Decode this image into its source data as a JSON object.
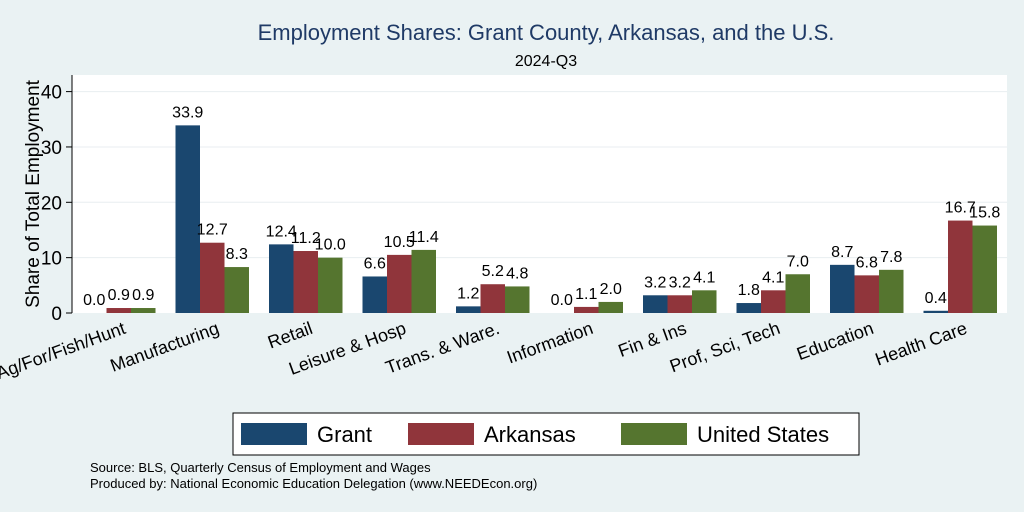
{
  "chart_data": {
    "type": "bar",
    "title": "Employment Shares: Grant County, Arkansas, and the U.S.",
    "subtitle": "2024-Q3",
    "ylabel": "Share of Total Employment",
    "xlabel": "",
    "ylim": [
      0,
      43
    ],
    "yticks": [
      0,
      10,
      20,
      30,
      40
    ],
    "grid": true,
    "legend_position": "bottom",
    "categories": [
      "Ag/For/Fish/Hunt",
      "Manufacturing",
      "Retail",
      "Leisure & Hosp",
      "Trans. & Ware.",
      "Information",
      "Fin & Ins",
      "Prof, Sci, Tech",
      "Education",
      "Health Care"
    ],
    "series": [
      {
        "name": "Grant",
        "color": "#1a476f",
        "values": [
          0.0,
          33.9,
          12.4,
          6.6,
          1.2,
          0.0,
          3.2,
          1.8,
          8.7,
          0.4
        ]
      },
      {
        "name": "Arkansas",
        "color": "#90353b",
        "values": [
          0.9,
          12.7,
          11.2,
          10.5,
          5.2,
          1.1,
          3.2,
          4.1,
          6.8,
          16.7
        ]
      },
      {
        "name": "United States",
        "color": "#55752f",
        "values": [
          0.9,
          8.3,
          10.0,
          11.4,
          4.8,
          2.0,
          4.1,
          7.0,
          7.8,
          15.8
        ]
      }
    ]
  },
  "notes": {
    "source": "Source: BLS, Quarterly Census of Employment and Wages",
    "produced": "Produced by: National Economic Education Delegation (www.NEEDEcon.org)"
  }
}
